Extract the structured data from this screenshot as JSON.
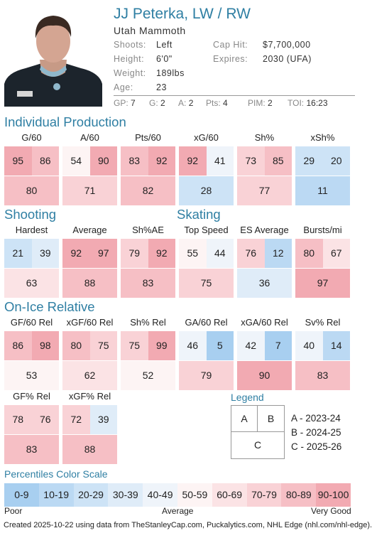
{
  "player": {
    "name": "JJ Peterka, LW / RW",
    "team": "Utah Mammoth",
    "info": [
      {
        "label": "Shoots:",
        "value": "Left"
      },
      {
        "label": "Height:",
        "value": "6'0\""
      },
      {
        "label": "Weight:",
        "value": "189lbs"
      },
      {
        "label": "Age:",
        "value": "23"
      }
    ],
    "contract": [
      {
        "label": "Cap Hit:",
        "value": "$7,700,000"
      },
      {
        "label": "Expires:",
        "value": "2030 (UFA)"
      }
    ],
    "stats": [
      {
        "label": "GP:",
        "value": "7"
      },
      {
        "label": "G:",
        "value": "2"
      },
      {
        "label": "A:",
        "value": "2"
      },
      {
        "label": "Pts:",
        "value": "4"
      },
      {
        "label": "PIM:",
        "value": "2"
      },
      {
        "label": "TOI:",
        "value": "16:23"
      }
    ]
  },
  "sections": {
    "individual": "Individual Production",
    "shooting": "Shooting",
    "skating": "Skating",
    "onice": "On-Ice Relative"
  },
  "blocks": {
    "g60": {
      "title": "G/60",
      "a": 95,
      "b": 86,
      "c": 80
    },
    "a60": {
      "title": "A/60",
      "a": 54,
      "b": 90,
      "c": 71
    },
    "pts60": {
      "title": "Pts/60",
      "a": 83,
      "b": 92,
      "c": 82
    },
    "xg60": {
      "title": "xG/60",
      "a": 92,
      "b": 41,
      "c": 28
    },
    "shpct": {
      "title": "Sh%",
      "a": 73,
      "b": 85,
      "c": 77
    },
    "xshpct": {
      "title": "xSh%",
      "a": 29,
      "b": 20,
      "c": 11
    },
    "hardest": {
      "title": "Hardest",
      "a": 21,
      "b": 39,
      "c": 63
    },
    "average": {
      "title": "Average",
      "a": 92,
      "b": 97,
      "c": 88
    },
    "shae": {
      "title": "Sh%AE",
      "a": 79,
      "b": 92,
      "c": 83
    },
    "topspeed": {
      "title": "Top Speed",
      "a": 55,
      "b": 44,
      "c": 75
    },
    "esavg": {
      "title": "ES Average",
      "a": 76,
      "b": 12,
      "c": 36
    },
    "bursts": {
      "title": "Bursts/mi",
      "a": 80,
      "b": 67,
      "c": 97
    },
    "gf60": {
      "title": "GF/60 Rel",
      "a": 86,
      "b": 98,
      "c": 53
    },
    "xgf60": {
      "title": "xGF/60 Rel",
      "a": 80,
      "b": 75,
      "c": 62
    },
    "shrel": {
      "title": "Sh% Rel",
      "a": 75,
      "b": 99,
      "c": 52
    },
    "ga60": {
      "title": "GA/60 Rel",
      "a": 46,
      "b": 5,
      "c": 79
    },
    "xga60": {
      "title": "xGA/60 Rel",
      "a": 42,
      "b": 7,
      "c": 90
    },
    "svrel": {
      "title": "Sv% Rel",
      "a": 40,
      "b": 14,
      "c": 83
    },
    "gfpct": {
      "title": "GF% Rel",
      "a": 78,
      "b": 76,
      "c": 83
    },
    "xgfpct": {
      "title": "xGF% Rel",
      "a": 72,
      "b": 39,
      "c": 88
    }
  },
  "legend": {
    "title": "Legend",
    "a": "A",
    "b": "B",
    "c": "C",
    "entries": [
      "A - 2023-24",
      "B - 2024-25",
      "C - 2025-26"
    ]
  },
  "scale": {
    "title": "Percentiles Color Scale",
    "cells": [
      {
        "label": "0-9",
        "color": "#a8cff0"
      },
      {
        "label": "10-19",
        "color": "#bbd9f3"
      },
      {
        "label": "20-29",
        "color": "#cde3f6"
      },
      {
        "label": "30-39",
        "color": "#dfecf8"
      },
      {
        "label": "40-49",
        "color": "#eff4fa"
      },
      {
        "label": "50-59",
        "color": "#fdf4f4"
      },
      {
        "label": "60-69",
        "color": "#fbe3e5"
      },
      {
        "label": "70-79",
        "color": "#f9d2d6"
      },
      {
        "label": "80-89",
        "color": "#f6bfc5"
      },
      {
        "label": "90-100",
        "color": "#f2aab2"
      }
    ],
    "low": "Poor",
    "mid": "Average",
    "high": "Very Good"
  },
  "footer": "Created 2025-10-22 using data from TheStanleyCap.com, Puckalytics.com, NHL Edge (nhl.com/nhl-edge)."
}
